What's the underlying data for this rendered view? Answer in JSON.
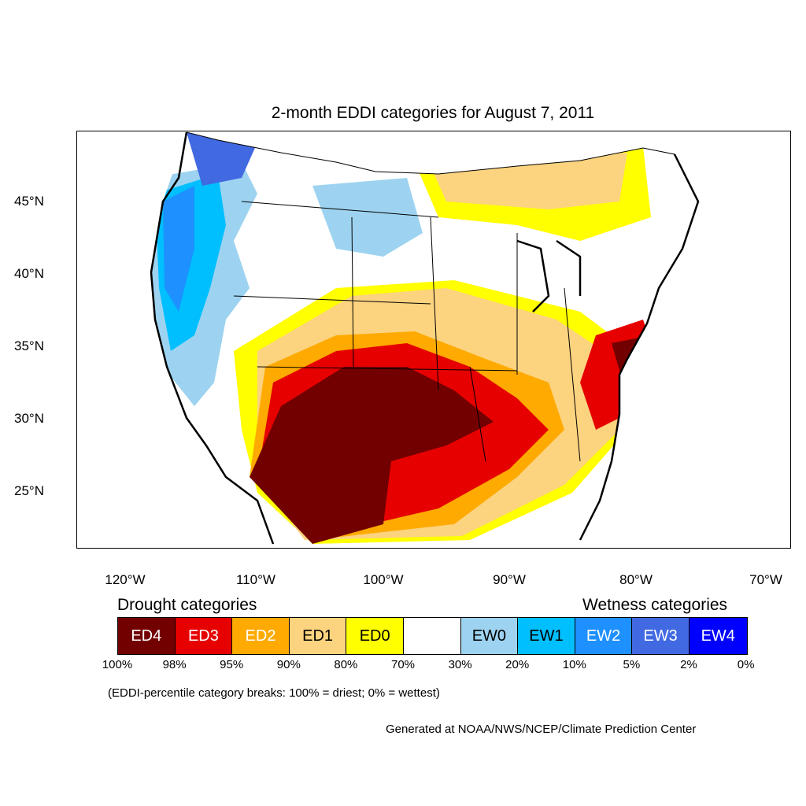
{
  "title": "2-month EDDI categories for August 7, 2011",
  "lat_labels": [
    "45°N",
    "40°N",
    "35°N",
    "30°N",
    "25°N"
  ],
  "lon_labels": [
    "120°W",
    "110°W",
    "100°W",
    "90°W",
    "80°W",
    "70°W"
  ],
  "drought_heading": "Drought categories",
  "wetness_heading": "Wetness categories",
  "categories": [
    {
      "label": "ED4",
      "color": "#730000",
      "text_color": "#ffffff"
    },
    {
      "label": "ED3",
      "color": "#e60000",
      "text_color": "#ffffff"
    },
    {
      "label": "ED2",
      "color": "#ffaa00",
      "text_color": "#ffffff"
    },
    {
      "label": "ED1",
      "color": "#fcd37f",
      "text_color": "#000000"
    },
    {
      "label": "ED0",
      "color": "#ffff00",
      "text_color": "#000000"
    },
    {
      "label": "",
      "color": "#ffffff",
      "text_color": "#000000"
    },
    {
      "label": "EW0",
      "color": "#9dd3f0",
      "text_color": "#000000"
    },
    {
      "label": "EW1",
      "color": "#00bfff",
      "text_color": "#000000"
    },
    {
      "label": "EW2",
      "color": "#1e90ff",
      "text_color": "#ffffff"
    },
    {
      "label": "EW3",
      "color": "#4169e1",
      "text_color": "#ffffff"
    },
    {
      "label": "EW4",
      "color": "#0000ff",
      "text_color": "#ffffff"
    }
  ],
  "percent_breaks": [
    "100%",
    "98%",
    "95%",
    "90%",
    "80%",
    "70%",
    "30%",
    "20%",
    "10%",
    "5%",
    "2%",
    "0%"
  ],
  "note": "(EDDI-percentile category breaks: 100% = driest; 0% = wettest)",
  "credit": "Generated at NOAA/NWS/NCEP/Climate Prediction Center"
}
